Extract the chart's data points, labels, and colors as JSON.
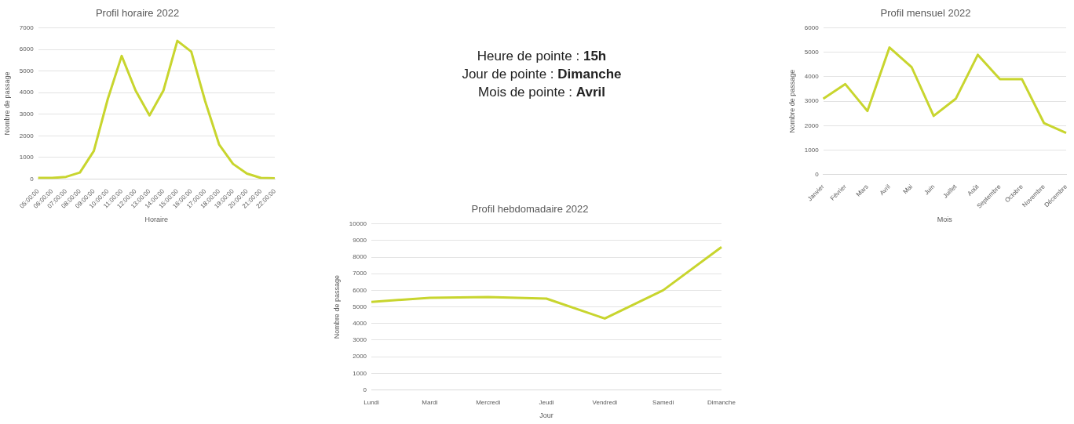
{
  "chart_data": [
    {
      "type": "line",
      "title": "Profil horaire 2022",
      "xlabel": "Horaire",
      "ylabel": "Nombre de passage",
      "categories": [
        "05:00:00",
        "06:00:00",
        "07:00:00",
        "08:00:00",
        "09:00:00",
        "10:00:00",
        "11:00:00",
        "12:00:00",
        "13:00:00",
        "14:00:00",
        "15:00:00",
        "16:00:00",
        "17:00:00",
        "18:00:00",
        "19:00:00",
        "20:00:00",
        "21:00:00",
        "22:00:00"
      ],
      "series": [
        {
          "color": "#c8d52e",
          "values": [
            50,
            50,
            100,
            300,
            1300,
            3700,
            5700,
            4100,
            2950,
            4100,
            6400,
            5900,
            3600,
            1600,
            700,
            250,
            50,
            30
          ]
        }
      ],
      "ylim": [
        0,
        7000
      ],
      "yticks": [
        0,
        1000,
        2000,
        3000,
        4000,
        5000,
        6000,
        7000
      ],
      "grid": "y",
      "legend": false,
      "marker": "none"
    },
    {
      "type": "line",
      "title": "Profil mensuel 2022",
      "xlabel": "Mois",
      "ylabel": "Nombre de passage",
      "categories": [
        "Janvier",
        "Février",
        "Mars",
        "Avril",
        "Mai",
        "Juin",
        "Juillet",
        "Août",
        "Septembre",
        "Octobre",
        "Novembre",
        "Décembre"
      ],
      "series": [
        {
          "color": "#c8d52e",
          "values": [
            3100,
            3700,
            2600,
            5200,
            4400,
            2400,
            3100,
            4900,
            3900,
            3900,
            2100,
            1700
          ]
        }
      ],
      "ylim": [
        0,
        6000
      ],
      "yticks": [
        0,
        1000,
        2000,
        3000,
        4000,
        5000,
        6000
      ],
      "grid": "y",
      "legend": false,
      "marker": "none"
    },
    {
      "type": "line",
      "title": "Profil hebdomadaire 2022",
      "xlabel": "Jour",
      "ylabel": "Nombre de passage",
      "categories": [
        "Lundi",
        "Mardi",
        "Mercredi",
        "Jeudi",
        "Vendredi",
        "Samedi",
        "Dimanche"
      ],
      "series": [
        {
          "color": "#c8d52e",
          "values": [
            5300,
            5550,
            5600,
            5500,
            4300,
            6000,
            8600
          ]
        }
      ],
      "ylim": [
        0,
        10000
      ],
      "yticks": [
        0,
        1000,
        2000,
        3000,
        4000,
        5000,
        6000,
        7000,
        8000,
        9000,
        10000
      ],
      "grid": "y",
      "legend": false,
      "marker": "none"
    },
    {
      "type": "other",
      "annotations": [
        "Heure de pointe : 15h",
        "Jour de pointe : Dimanche",
        "Mois de pointe : Avril"
      ]
    }
  ]
}
